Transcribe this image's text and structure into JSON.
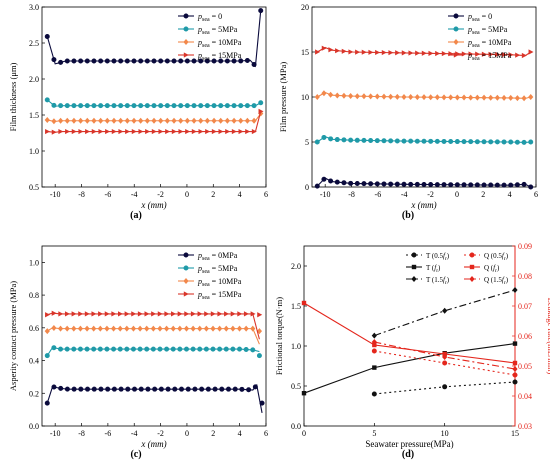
{
  "chart_data": [
    {
      "panel": "(a)",
      "type": "line",
      "xlabel": "x (mm)",
      "ylabel": "Film thickness (μm)",
      "xlim": [
        -11,
        6
      ],
      "ylim": [
        0.5,
        3.0
      ],
      "xticks": [
        -10,
        -8,
        -6,
        -4,
        -2,
        0,
        2,
        4,
        6
      ],
      "yticks": [
        0.5,
        1.0,
        1.5,
        2.0,
        2.5,
        3.0
      ],
      "xtick_labels": [
        "-10",
        "-8",
        "-6",
        "-4",
        "-2",
        "0",
        "2",
        "4",
        "6"
      ],
      "ytick_labels": [
        "0.5",
        "1.0",
        "1.5",
        "2.0",
        "2.5",
        "3.0"
      ],
      "legend_position": "top-right",
      "series": [
        {
          "name": "p_sea = 0",
          "legend_main": "p",
          "legend_sub": "sea",
          "legend_rest": " = 0",
          "color": "#0a0a3c",
          "marker": "circle",
          "x": [
            -10.6,
            -10.0,
            -9.6,
            -9.2,
            -4.0,
            0.0,
            4.0,
            4.8,
            5.2,
            5.6
          ],
          "y": [
            2.59,
            2.21,
            2.23,
            2.25,
            2.25,
            2.25,
            2.25,
            2.26,
            2.18,
            2.95
          ]
        },
        {
          "name": "p_sea = 5MPa",
          "legend_main": "p",
          "legend_sub": "sea",
          "legend_rest": " = 5MPa",
          "color": "#1f9aa8",
          "marker": "circle",
          "x": [
            -10.6,
            -10.0,
            -9.6,
            -4.0,
            0.0,
            4.0,
            5.2,
            5.6
          ],
          "y": [
            1.71,
            1.62,
            1.63,
            1.63,
            1.63,
            1.63,
            1.63,
            1.67
          ]
        },
        {
          "name": "p_sea = 10MPa",
          "legend_main": "p",
          "legend_sub": "sea",
          "legend_rest": " = 10MPa",
          "color": "#f2884b",
          "marker": "diamond",
          "x": [
            -10.6,
            -10.0,
            -9.6,
            -4.0,
            0.0,
            4.0,
            5.2,
            5.6
          ],
          "y": [
            1.43,
            1.41,
            1.42,
            1.42,
            1.42,
            1.42,
            1.42,
            1.52
          ]
        },
        {
          "name": "p_sea = 15MPa",
          "legend_main": "p",
          "legend_sub": "sea",
          "legend_rest": " = 15MPa",
          "color": "#d9352a",
          "marker": "triangle",
          "x": [
            -10.6,
            -10.0,
            -9.6,
            -4.0,
            0.0,
            4.0,
            5.2,
            5.6
          ],
          "y": [
            1.27,
            1.26,
            1.27,
            1.27,
            1.27,
            1.27,
            1.27,
            1.55
          ]
        }
      ]
    },
    {
      "panel": "(b)",
      "type": "line",
      "xlabel": "x (mm)",
      "ylabel": "Film pressure (MPa)",
      "xlim": [
        -11,
        6
      ],
      "ylim": [
        0,
        20
      ],
      "xticks": [
        -10,
        -8,
        -6,
        -4,
        -2,
        0,
        2,
        4,
        6
      ],
      "yticks": [
        0,
        5,
        10,
        15,
        20
      ],
      "xtick_labels": [
        "-10",
        "-8",
        "-6",
        "-4",
        "-2",
        "0",
        "2",
        "4",
        "6"
      ],
      "ytick_labels": [
        "0",
        "5",
        "10",
        "15",
        "20"
      ],
      "legend_position": "top-right",
      "series": [
        {
          "name": "p_sea = 0",
          "legend_main": "p",
          "legend_sub": "sea",
          "legend_rest": " = 0",
          "color": "#0a0a3c",
          "marker": "circle",
          "x": [
            -10.6,
            -10.0,
            -9.5,
            -8.0,
            -4.0,
            0.0,
            4.0,
            5.2,
            5.6
          ],
          "y": [
            0.1,
            1.0,
            0.6,
            0.4,
            0.3,
            0.25,
            0.2,
            0.3,
            0.0
          ]
        },
        {
          "name": "p_sea = 5MPa",
          "legend_main": "p",
          "legend_sub": "sea",
          "legend_rest": " = 5MPa",
          "color": "#1f9aa8",
          "marker": "circle",
          "x": [
            -10.6,
            -10.0,
            -9.5,
            -8.0,
            -4.0,
            0.0,
            4.0,
            5.2,
            5.6
          ],
          "y": [
            5.0,
            5.6,
            5.3,
            5.2,
            5.1,
            5.05,
            5.0,
            4.95,
            5.0
          ]
        },
        {
          "name": "p_sea = 10MPa",
          "legend_main": "p",
          "legend_sub": "sea",
          "legend_rest": " = 10MPa",
          "color": "#f2884b",
          "marker": "diamond",
          "x": [
            -10.6,
            -10.0,
            -9.5,
            -8.0,
            -4.0,
            0.0,
            4.0,
            5.2,
            5.6
          ],
          "y": [
            10.0,
            10.5,
            10.2,
            10.1,
            10.0,
            9.95,
            9.9,
            9.85,
            10.0
          ]
        },
        {
          "name": "p_sea = 15MPa",
          "legend_main": "p",
          "legend_sub": "sea",
          "legend_rest": " = 15MPa",
          "color": "#d9352a",
          "marker": "triangle",
          "x": [
            -10.6,
            -10.0,
            -9.5,
            -8.0,
            -4.0,
            0.0,
            4.0,
            5.2,
            5.6
          ],
          "y": [
            15.0,
            15.5,
            15.2,
            15.0,
            14.9,
            14.8,
            14.7,
            14.6,
            15.0
          ]
        }
      ]
    },
    {
      "panel": "(c)",
      "type": "line",
      "xlabel": "x (mm)",
      "ylabel": "Asperity contact pressure (MPa)",
      "xlim": [
        -11,
        6
      ],
      "ylim": [
        0.0,
        1.1
      ],
      "xticks": [
        -10,
        -8,
        -6,
        -4,
        -2,
        0,
        2,
        4,
        6
      ],
      "yticks": [
        0.0,
        0.2,
        0.4,
        0.6,
        0.8,
        1.0
      ],
      "xtick_labels": [
        "-10",
        "-8",
        "-6",
        "-4",
        "-2",
        "0",
        "2",
        "4",
        "6"
      ],
      "ytick_labels": [
        "0.0",
        "0.2",
        "0.4",
        "0.6",
        "0.8",
        "1.0"
      ],
      "legend_position": "top-right",
      "series": [
        {
          "name": "p_sea = 0MPa",
          "legend_main": "p",
          "legend_sub": "sea",
          "legend_rest": " = 0MPa",
          "color": "#0a0a3c",
          "marker": "circle",
          "x": [
            -10.6,
            -10.2,
            -9.6,
            -9.0,
            -4.0,
            0.0,
            4.0,
            5.0,
            5.3,
            5.7
          ],
          "y": [
            0.14,
            0.24,
            0.23,
            0.225,
            0.225,
            0.225,
            0.225,
            0.22,
            0.25,
            0.08
          ]
        },
        {
          "name": "p_sea = 5MPa",
          "legend_main": "p",
          "legend_sub": "sea",
          "legend_rest": " = 5MPa",
          "color": "#1f9aa8",
          "marker": "circle",
          "x": [
            -10.6,
            -10.2,
            -9.6,
            -4.0,
            0.0,
            4.0,
            5.0,
            5.5
          ],
          "y": [
            0.43,
            0.48,
            0.47,
            0.47,
            0.47,
            0.47,
            0.465,
            0.455
          ]
        },
        {
          "name": "p_sea = 10MPa",
          "legend_main": "p",
          "legend_sub": "sea",
          "legend_rest": " = 10MPa",
          "color": "#f2884b",
          "marker": "diamond",
          "x": [
            -10.6,
            -10.2,
            -9.6,
            -4.0,
            0.0,
            4.0,
            5.0,
            5.5
          ],
          "y": [
            0.58,
            0.6,
            0.595,
            0.595,
            0.595,
            0.595,
            0.595,
            0.5
          ]
        },
        {
          "name": "p_sea = 15MPa",
          "legend_main": "p",
          "legend_sub": "sea",
          "legend_rest": " = 15MPa",
          "color": "#d9352a",
          "marker": "triangle",
          "x": [
            -10.6,
            -10.2,
            -9.6,
            -4.0,
            0.0,
            4.0,
            5.0,
            5.5
          ],
          "y": [
            0.68,
            0.69,
            0.685,
            0.685,
            0.685,
            0.685,
            0.685,
            0.53
          ]
        }
      ]
    },
    {
      "panel": "(d)",
      "type": "line",
      "xlabel": "Seawater pressure(MPa)",
      "ylabel": "Frictional torque(N·m)",
      "y2label": "Leakage rate(mL/min)",
      "xlim": [
        0,
        15
      ],
      "ylim": [
        0.0,
        2.25
      ],
      "y2lim": [
        0.03,
        0.09
      ],
      "xticks": [
        0,
        5,
        10,
        15
      ],
      "yticks": [
        0.0,
        0.5,
        1.0,
        1.5,
        2.0
      ],
      "y2ticks": [
        0.03,
        0.04,
        0.05,
        0.06,
        0.07,
        0.08,
        0.09
      ],
      "xtick_labels": [
        "0",
        "5",
        "10",
        "15"
      ],
      "ytick_labels": [
        "0.0",
        "0.5",
        "1.0",
        "1.5",
        "2.0"
      ],
      "y2tick_labels": [
        "0.03",
        "0.04",
        "0.05",
        "0.06",
        "0.07",
        "0.08",
        "0.09"
      ],
      "legend_position": "top-right",
      "series": [
        {
          "name": "T (0.5f_r)",
          "legend_main": "T (0.5",
          "legend_italic": "f",
          "legend_sub": "r",
          "legend_rest": ")",
          "axis": "left",
          "color": "#111111",
          "dash": "2,3",
          "marker": "circle",
          "x": [
            5,
            10,
            15
          ],
          "y": [
            0.4,
            0.49,
            0.55
          ]
        },
        {
          "name": "T (f_r)",
          "legend_main": "T (",
          "legend_italic": "f",
          "legend_sub": "r",
          "legend_rest": ")",
          "axis": "left",
          "color": "#111111",
          "dash": "",
          "marker": "square",
          "x": [
            0,
            5,
            10,
            15
          ],
          "y": [
            0.41,
            0.73,
            0.91,
            1.03
          ]
        },
        {
          "name": "T (1.5f_r)",
          "legend_main": "T (1.5",
          "legend_italic": "f",
          "legend_sub": "r",
          "legend_rest": ")",
          "axis": "left",
          "color": "#111111",
          "dash": "7,3,2,3",
          "marker": "diamond",
          "x": [
            5,
            10,
            15
          ],
          "y": [
            1.13,
            1.44,
            1.7
          ]
        },
        {
          "name": "Q (0.5f_r)",
          "legend_main": "Q (0.5",
          "legend_italic": "f",
          "legend_sub": "r",
          "legend_rest": ")",
          "axis": "right",
          "color": "#e4261c",
          "dash": "2,3",
          "marker": "circle",
          "x": [
            5,
            10,
            15
          ],
          "y": [
            0.055,
            0.051,
            0.047
          ]
        },
        {
          "name": "Q (f_r)",
          "legend_main": "Q (",
          "legend_italic": "f",
          "legend_sub": "r",
          "legend_rest": ")",
          "axis": "right",
          "color": "#e4261c",
          "dash": "",
          "marker": "square",
          "x": [
            0,
            5,
            10,
            15
          ],
          "y": [
            0.071,
            0.057,
            0.054,
            0.051
          ]
        },
        {
          "name": "Q (1.5f_r)",
          "legend_main": "Q (1.5",
          "legend_italic": "f",
          "legend_sub": "r",
          "legend_rest": ")",
          "axis": "right",
          "color": "#e4261c",
          "dash": "7,3,2,3",
          "marker": "diamond",
          "x": [
            5,
            10,
            15
          ],
          "y": [
            0.058,
            0.053,
            0.049
          ]
        }
      ]
    }
  ]
}
